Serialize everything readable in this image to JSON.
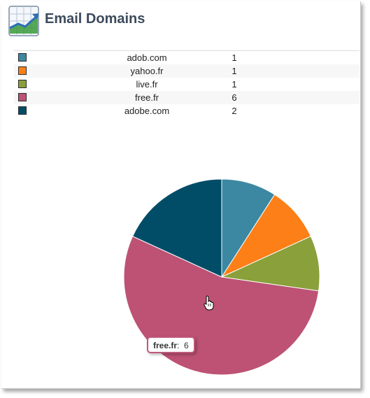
{
  "header": {
    "title": "Email Domains"
  },
  "tooltip": {
    "label": "free.fr",
    "separator": ":",
    "value": "6"
  },
  "chart_data": {
    "type": "pie",
    "title": "Email Domains",
    "slices": [
      {
        "label": "adob.com",
        "value": 1,
        "color": "#3c88a2"
      },
      {
        "label": "yahoo.fr",
        "value": 1,
        "color": "#fd7f17"
      },
      {
        "label": "live.fr",
        "value": 1,
        "color": "#8aa03a"
      },
      {
        "label": "free.fr",
        "value": 6,
        "color": "#bd5274"
      },
      {
        "label": "adobe.com",
        "value": 2,
        "color": "#014d67"
      }
    ]
  }
}
